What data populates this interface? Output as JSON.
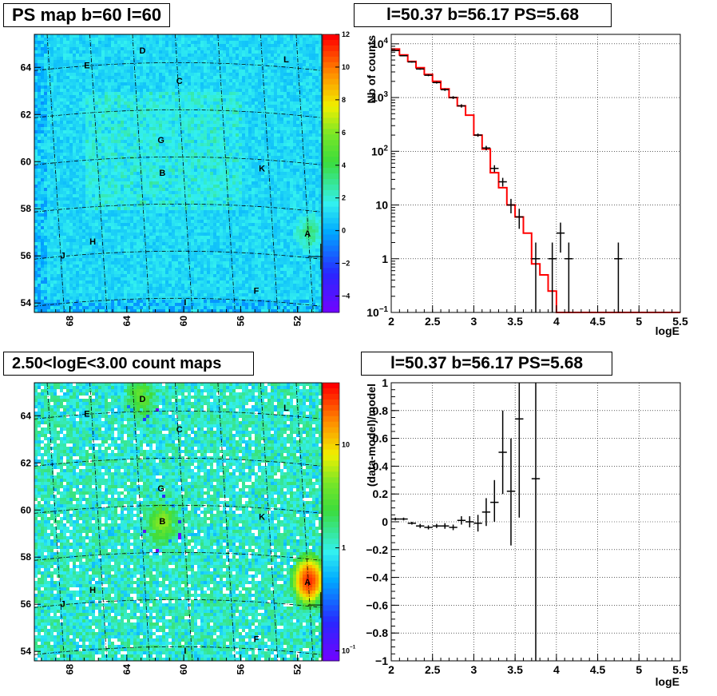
{
  "titles": {
    "ps_map": "PS map b=60 l=60",
    "spectrum": "l=50.37 b=56.17 PS=5.68",
    "count_map": "2.50<logE<3.00 count maps",
    "residual": "l=50.37 b=56.17 PS=5.68"
  },
  "colors": {
    "map_background_ps": "#35f2f2",
    "map_background_count": "#45dd45",
    "model_line": "#ff0000",
    "data_markers": "#000000",
    "grid": "#000000"
  },
  "chart_data": [
    {
      "id": "ps_map",
      "type": "heatmap",
      "title": "PS map b=60 l=60",
      "x_ticks": [
        "68",
        "64",
        "60",
        "56",
        "52"
      ],
      "y_ticks": [
        "54",
        "56",
        "58",
        "60",
        "62",
        "64"
      ],
      "xlim": [
        70.5,
        50.3
      ],
      "ylim": [
        53.6,
        65.4
      ],
      "colorbar_ticks": [
        "12",
        "10",
        "8",
        "6",
        "4",
        "2",
        "0",
        "−2",
        "−4"
      ],
      "colorbar_range": [
        -5,
        12
      ],
      "colorbar_scale": "linear",
      "sources": [
        {
          "label": "E",
          "l": 66.8,
          "b": 64.1
        },
        {
          "label": "D",
          "l": 62.9,
          "b": 64.6
        },
        {
          "label": "L",
          "l": 52.8,
          "b": 64.4
        },
        {
          "label": "C",
          "l": 60.3,
          "b": 63.3
        },
        {
          "label": "G",
          "l": 61.6,
          "b": 60.8
        },
        {
          "label": "B",
          "l": 61.5,
          "b": 59.4
        },
        {
          "label": "K",
          "l": 54.5,
          "b": 59.7
        },
        {
          "label": "A",
          "l": 51.3,
          "b": 57.1
        },
        {
          "label": "H",
          "l": 66.4,
          "b": 56.6
        },
        {
          "label": "J",
          "l": 68.5,
          "b": 56.1
        },
        {
          "label": "F",
          "l": 54.9,
          "b": 54.5
        },
        {
          "label": "I",
          "l": 59.9,
          "b": 53.9
        }
      ],
      "marker": {
        "l": 50.37,
        "b": 56.17
      }
    },
    {
      "id": "spectrum",
      "type": "line",
      "title": "l=50.37 b=56.17 PS=5.68",
      "xlabel": "logE",
      "ylabel": "Nb of counts",
      "xlim": [
        2,
        5.5
      ],
      "ylim": [
        0.1,
        15000
      ],
      "yscale": "log",
      "x_ticks": [
        "2",
        "2.5",
        "3",
        "3.5",
        "4",
        "4.5",
        "5",
        "5.5"
      ],
      "y_ticks": [
        "10^4",
        "10^3",
        "10^2",
        "10",
        "1",
        "10^-1"
      ],
      "grid": true,
      "model_edges": [
        2.0,
        2.1,
        2.2,
        2.3,
        2.4,
        2.5,
        2.6,
        2.7,
        2.8,
        2.9,
        3.0,
        3.1,
        3.2,
        3.3,
        3.4,
        3.5,
        3.6,
        3.7,
        3.8,
        3.9,
        4.0,
        5.5
      ],
      "model_values": [
        8000,
        6200,
        4700,
        3600,
        2700,
        2000,
        1450,
        1000,
        700,
        470,
        200,
        110,
        40,
        21,
        10,
        6,
        3,
        0.8,
        0.5,
        0.25,
        0.1
      ],
      "data": [
        {
          "x": 2.05,
          "y": 7500,
          "xerr": 0.05,
          "ylo": 7350,
          "yhi": 7650
        },
        {
          "x": 2.15,
          "y": 6000,
          "xerr": 0.05,
          "ylo": 5850,
          "yhi": 6150
        },
        {
          "x": 2.25,
          "y": 4600,
          "xerr": 0.05,
          "ylo": 4470,
          "yhi": 4730
        },
        {
          "x": 2.35,
          "y": 3400,
          "xerr": 0.05,
          "ylo": 3290,
          "yhi": 3510
        },
        {
          "x": 2.45,
          "y": 2600,
          "xerr": 0.05,
          "ylo": 2500,
          "yhi": 2700
        },
        {
          "x": 2.55,
          "y": 1900,
          "xerr": 0.05,
          "ylo": 1820,
          "yhi": 1980
        },
        {
          "x": 2.65,
          "y": 1400,
          "xerr": 0.05,
          "ylo": 1330,
          "yhi": 1470
        },
        {
          "x": 2.75,
          "y": 1000,
          "xerr": 0.05,
          "ylo": 940,
          "yhi": 1060
        },
        {
          "x": 2.85,
          "y": 700,
          "xerr": 0.05,
          "ylo": 650,
          "yhi": 750
        },
        {
          "x": 3.05,
          "y": 200,
          "xerr": 0.05,
          "ylo": 186,
          "yhi": 214
        },
        {
          "x": 3.15,
          "y": 115,
          "xerr": 0.05,
          "ylo": 104,
          "yhi": 126
        },
        {
          "x": 3.25,
          "y": 48,
          "xerr": 0.05,
          "ylo": 41,
          "yhi": 55
        },
        {
          "x": 3.35,
          "y": 27,
          "xerr": 0.05,
          "ylo": 22,
          "yhi": 32
        },
        {
          "x": 3.45,
          "y": 10,
          "xerr": 0.05,
          "ylo": 7,
          "yhi": 13
        },
        {
          "x": 3.55,
          "y": 6,
          "xerr": 0.05,
          "ylo": 3.6,
          "yhi": 8.5
        },
        {
          "x": 3.75,
          "y": 1,
          "xerr": 0.05,
          "ylo": 0.1,
          "yhi": 2
        },
        {
          "x": 3.95,
          "y": 1,
          "xerr": 0.05,
          "ylo": 0.1,
          "yhi": 2
        },
        {
          "x": 4.05,
          "y": 3,
          "xerr": 0.05,
          "ylo": 1.3,
          "yhi": 4.7
        },
        {
          "x": 4.15,
          "y": 1,
          "xerr": 0.05,
          "ylo": 0.1,
          "yhi": 2
        },
        {
          "x": 4.75,
          "y": 1,
          "xerr": 0.05,
          "ylo": 0.1,
          "yhi": 2
        }
      ]
    },
    {
      "id": "count_map",
      "type": "heatmap",
      "title": "2.50<logE<3.00 count maps",
      "x_ticks": [
        "68",
        "64",
        "60",
        "56",
        "52"
      ],
      "y_ticks": [
        "54",
        "56",
        "58",
        "60",
        "62",
        "64"
      ],
      "xlim": [
        70.5,
        50.3
      ],
      "ylim": [
        53.6,
        65.4
      ],
      "colorbar_ticks": [
        "10",
        "1",
        "10^-1"
      ],
      "colorbar_range": [
        0.08,
        40
      ],
      "colorbar_scale": "log",
      "sources": [
        {
          "label": "E",
          "l": 66.8,
          "b": 64.1
        },
        {
          "label": "D",
          "l": 62.9,
          "b": 64.6
        },
        {
          "label": "L",
          "l": 52.8,
          "b": 64.4
        },
        {
          "label": "C",
          "l": 60.3,
          "b": 63.3
        },
        {
          "label": "G",
          "l": 61.6,
          "b": 60.8
        },
        {
          "label": "B",
          "l": 61.5,
          "b": 59.4
        },
        {
          "label": "K",
          "l": 54.5,
          "b": 59.7
        },
        {
          "label": "A",
          "l": 51.3,
          "b": 57.1
        },
        {
          "label": "H",
          "l": 66.4,
          "b": 56.6
        },
        {
          "label": "J",
          "l": 68.5,
          "b": 56.1
        },
        {
          "label": "F",
          "l": 54.9,
          "b": 54.5
        },
        {
          "label": "I",
          "l": 59.9,
          "b": 53.9
        }
      ],
      "marker": {
        "l": 50.37,
        "b": 56.17
      },
      "bright_spots": [
        {
          "label": "A",
          "l": 51.2,
          "b": 57.0,
          "peak": 30
        },
        {
          "label": "B",
          "l": 61.5,
          "b": 59.5,
          "peak": 4
        },
        {
          "label": "D",
          "l": 63.0,
          "b": 64.8,
          "peak": 2.5
        }
      ]
    },
    {
      "id": "residual",
      "type": "scatter",
      "title": "l=50.37 b=56.17 PS=5.68",
      "xlabel": "logE",
      "ylabel": "(data-model)/model",
      "xlim": [
        2,
        5.5
      ],
      "ylim": [
        -1,
        1
      ],
      "x_ticks": [
        "2",
        "2.5",
        "3",
        "3.5",
        "4",
        "4.5",
        "5",
        "5.5"
      ],
      "y_ticks": [
        "1",
        "0.8",
        "0.6",
        "0.4",
        "0.2",
        "0",
        "−0.2",
        "−0.4",
        "−0.6",
        "−0.8",
        "−1"
      ],
      "grid": true,
      "data": [
        {
          "x": 2.05,
          "y": 0.02,
          "xerr": 0.05,
          "ylo": 0.01,
          "yhi": 0.03
        },
        {
          "x": 2.15,
          "y": 0.02,
          "xerr": 0.05,
          "ylo": 0.01,
          "yhi": 0.03
        },
        {
          "x": 2.25,
          "y": -0.01,
          "xerr": 0.05,
          "ylo": -0.02,
          "yhi": 0.0
        },
        {
          "x": 2.35,
          "y": -0.03,
          "xerr": 0.05,
          "ylo": -0.045,
          "yhi": -0.015
        },
        {
          "x": 2.45,
          "y": -0.04,
          "xerr": 0.05,
          "ylo": -0.055,
          "yhi": -0.025
        },
        {
          "x": 2.55,
          "y": -0.03,
          "xerr": 0.05,
          "ylo": -0.045,
          "yhi": -0.015
        },
        {
          "x": 2.65,
          "y": -0.03,
          "xerr": 0.05,
          "ylo": -0.05,
          "yhi": -0.01
        },
        {
          "x": 2.75,
          "y": -0.04,
          "xerr": 0.05,
          "ylo": -0.06,
          "yhi": -0.02
        },
        {
          "x": 2.85,
          "y": 0.01,
          "xerr": 0.05,
          "ylo": -0.02,
          "yhi": 0.04
        },
        {
          "x": 2.95,
          "y": 0.0,
          "xerr": 0.05,
          "ylo": -0.04,
          "yhi": 0.04
        },
        {
          "x": 3.05,
          "y": -0.01,
          "xerr": 0.05,
          "ylo": -0.07,
          "yhi": 0.05
        },
        {
          "x": 3.15,
          "y": 0.07,
          "xerr": 0.05,
          "ylo": -0.03,
          "yhi": 0.17
        },
        {
          "x": 3.25,
          "y": 0.14,
          "xerr": 0.05,
          "ylo": 0.0,
          "yhi": 0.3
        },
        {
          "x": 3.35,
          "y": 0.5,
          "xerr": 0.05,
          "ylo": 0.2,
          "yhi": 0.8
        },
        {
          "x": 3.45,
          "y": 0.22,
          "xerr": 0.05,
          "ylo": -0.17,
          "yhi": 0.6
        },
        {
          "x": 3.55,
          "y": 0.74,
          "xerr": 0.05,
          "ylo": 0.03,
          "yhi": 1.0
        },
        {
          "x": 3.75,
          "y": 0.31,
          "xerr": 0.05,
          "ylo": -1.0,
          "yhi": 1.0
        }
      ]
    }
  ]
}
